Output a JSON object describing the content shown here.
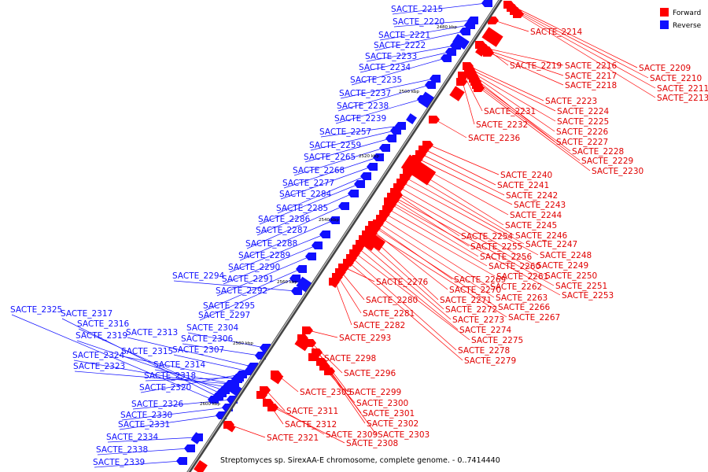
{
  "legend": {
    "forward_label": "Forward",
    "reverse_label": "Reverse",
    "forward_color": "#ff0000",
    "reverse_color": "#1010ff"
  },
  "caption": "Streptomyces sp. SirexAA-E chromosome, complete genome. - 0..7414440",
  "ticks": [
    "2600 kbp",
    "2580 kbp",
    "2560 kbp",
    "2540 kbp",
    "2520 kbp",
    "2500 kbp",
    "2480 kbp"
  ],
  "forward_genes": [
    "SACTE_2214",
    "SACTE_2209",
    "SACTE_2210",
    "SACTE_2211",
    "SACTE_2213",
    "SACTE_2219",
    "SACTE_2216",
    "SACTE_2217",
    "SACTE_2218",
    "SACTE_2223",
    "SACTE_2224",
    "SACTE_2231",
    "SACTE_2225",
    "SACTE_2232",
    "SACTE_2226",
    "SACTE_2227",
    "SACTE_2236",
    "SACTE_2228",
    "SACTE_2229",
    "SACTE_2230",
    "SACTE_2240",
    "SACTE_2241",
    "SACTE_2242",
    "SACTE_2243",
    "SACTE_2244",
    "SACTE_2245",
    "SACTE_2246",
    "SACTE_2254",
    "SACTE_2247",
    "SACTE_2255",
    "SACTE_2248",
    "SACTE_2256",
    "SACTE_2249",
    "SACTE_2260",
    "SACTE_2250",
    "SACTE_2261",
    "SACTE_2276",
    "SACTE_2269",
    "SACTE_2262",
    "SACTE_2251",
    "SACTE_2270",
    "SACTE_2253",
    "SACTE_2263",
    "SACTE_2280",
    "SACTE_2271",
    "SACTE_2266",
    "SACTE_2272",
    "SACTE_2281",
    "SACTE_2267",
    "SACTE_2273",
    "SACTE_2282",
    "SACTE_2274",
    "SACTE_2293",
    "SACTE_2275",
    "SACTE_2278",
    "SACTE_2298",
    "SACTE_2279",
    "SACTE_2296",
    "SACTE_2305",
    "SACTE_2299",
    "SACTE_2300",
    "SACTE_2311",
    "SACTE_2301",
    "SACTE_2312",
    "SACTE_2302",
    "SACTE_2309",
    "SACTE_2303",
    "SACTE_2321",
    "SACTE_2308"
  ],
  "reverse_genes": [
    "SACTE_2215",
    "SACTE_2220",
    "SACTE_2221",
    "SACTE_2222",
    "SACTE_2233",
    "SACTE_2234",
    "SACTE_2235",
    "SACTE_2237",
    "SACTE_2238",
    "SACTE_2239",
    "SACTE_2257",
    "SACTE_2259",
    "SACTE_2265",
    "SACTE_2268",
    "SACTE_2277",
    "SACTE_2284",
    "SACTE_2285",
    "SACTE_2286",
    "SACTE_2287",
    "SACTE_2288",
    "SACTE_2289",
    "SACTE_2290",
    "SACTE_2294",
    "SACTE_2291",
    "SACTE_2292",
    "SACTE_2295",
    "SACTE_2297",
    "SACTE_2325",
    "SACTE_2317",
    "SACTE_2316",
    "SACTE_2313",
    "SACTE_2304",
    "SACTE_2319",
    "SACTE_2306",
    "SACTE_2307",
    "SACTE_2324",
    "SACTE_2315",
    "SACTE_2314",
    "SACTE_2323",
    "SACTE_2318",
    "SACTE_2320",
    "SACTE_2326",
    "SACTE_2330",
    "SACTE_2331",
    "SACTE_2334",
    "SACTE_2338",
    "SACTE_2339"
  ]
}
